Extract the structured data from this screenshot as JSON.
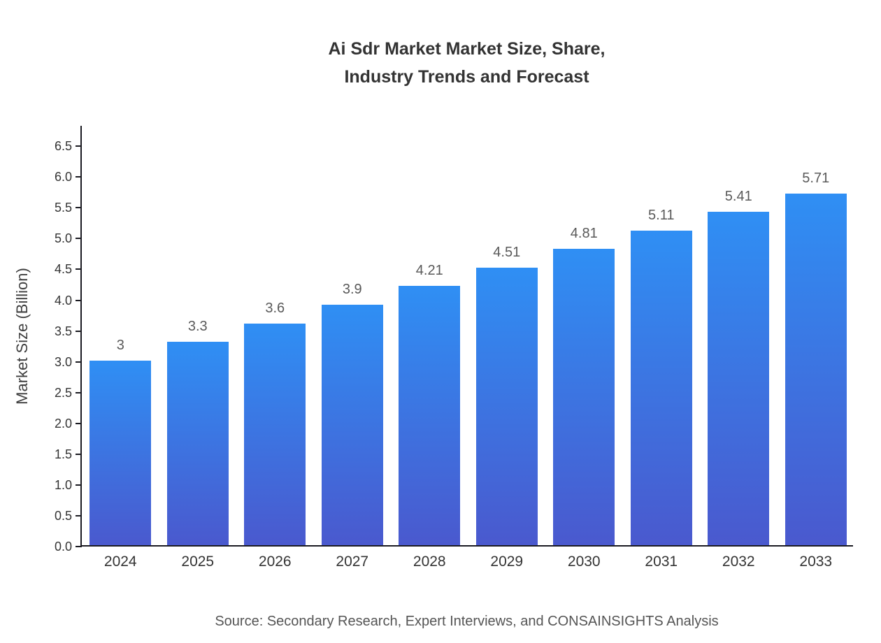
{
  "header": {
    "title": "Ai Sdr Market Market Size, Share,\nIndustry Trends and Forecast"
  },
  "footer": {
    "source": "Source: Secondary Research, Expert Interviews, and CONSAINSIGHTS Analysis"
  },
  "chart_data": {
    "type": "bar",
    "title": "Ai Sdr Market Market Size, Share, Industry Trends and Forecast",
    "categories": [
      "2024",
      "2025",
      "2026",
      "2027",
      "2028",
      "2029",
      "2030",
      "2031",
      "2032",
      "2033"
    ],
    "values": [
      3,
      3.3,
      3.6,
      3.9,
      4.21,
      4.51,
      4.81,
      5.11,
      5.41,
      5.71
    ],
    "value_labels": [
      "3",
      "3.3",
      "3.6",
      "3.9",
      "4.21",
      "4.51",
      "4.81",
      "5.11",
      "5.41",
      "5.71"
    ],
    "xlabel": "",
    "ylabel": "Market Size (Billion)",
    "ylim": [
      0,
      6.5
    ],
    "ytick_step": 0.5,
    "grid": false,
    "legend": "none",
    "colors": {
      "bar_top": "#2F8FF4",
      "bar_bottom": "#4A59CE",
      "axis": "#1b1b22",
      "tick_label": "#343434",
      "value_label": "#595959",
      "title": "#333333",
      "source": "#555555"
    }
  }
}
